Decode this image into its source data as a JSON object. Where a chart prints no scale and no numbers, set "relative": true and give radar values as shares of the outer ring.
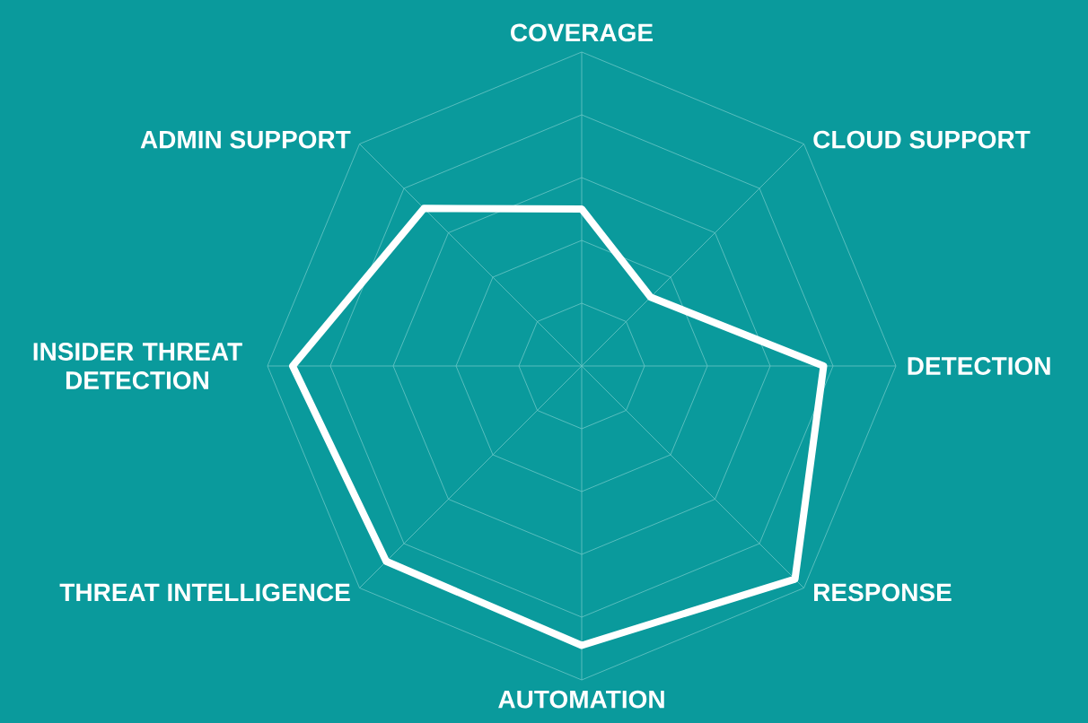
{
  "chart_data": {
    "type": "radar",
    "relative": true,
    "grid": true,
    "categories": [
      "COVERAGE",
      "CLOUD SUPPORT",
      "DETECTION",
      "RESPONSE",
      "AUTOMATION",
      "THREAT INTELLIGENCE",
      "INSIDER THREAT DETECTION",
      "ADMIN SUPPORT"
    ],
    "series": [
      {
        "color": "#ffffff",
        "values": [
          0.5,
          0.31,
          0.77,
          0.96,
          0.89,
          0.88,
          0.92,
          0.71
        ]
      }
    ]
  }
}
